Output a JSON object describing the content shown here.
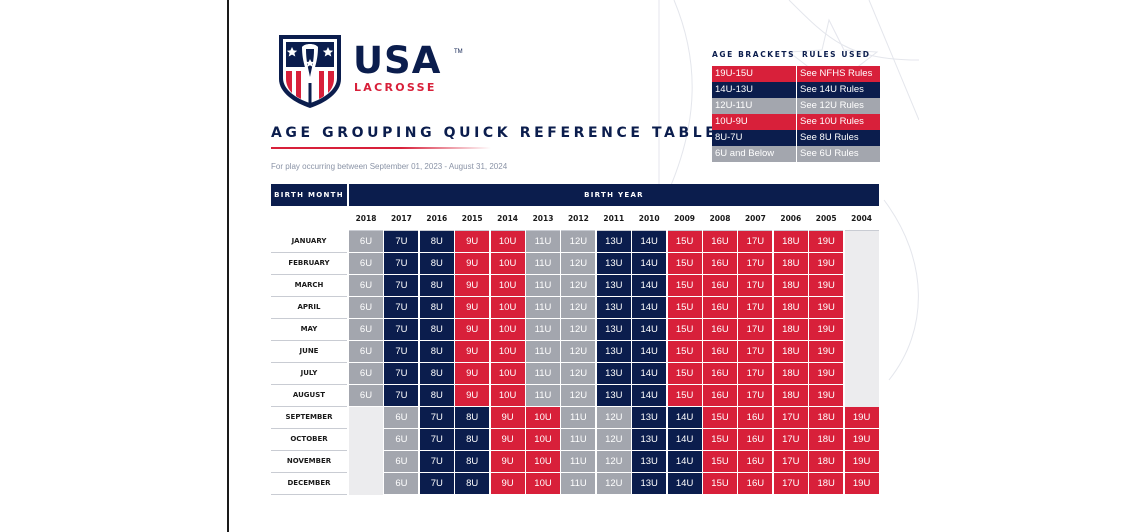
{
  "logo": {
    "wordmark": "USA",
    "tm": "TM",
    "sub": "LACROSSE"
  },
  "title": "AGE GROUPING QUICK REFERENCE TABLE",
  "subtitle": "For play occurring between September 01, 2023 - August 31, 2024",
  "legend": {
    "header_brackets": "AGE BRACKETS",
    "header_rules": "RULES USED",
    "rows": [
      {
        "bracket": "19U-15U",
        "rules": "See NFHS Rules",
        "color": "#d8203a"
      },
      {
        "bracket": "14U-13U",
        "rules": "See 14U Rules",
        "color": "#0b1d4d"
      },
      {
        "bracket": "12U-11U",
        "rules": "See 12U Rules",
        "color": "#a3a6ae"
      },
      {
        "bracket": "10U-9U",
        "rules": "See 10U Rules",
        "color": "#d8203a"
      },
      {
        "bracket": "8U-7U",
        "rules": "See 8U Rules",
        "color": "#0b1d4d"
      },
      {
        "bracket": "6U and Below",
        "rules": "See 6U Rules",
        "color": "#a3a6ae"
      }
    ]
  },
  "table": {
    "header_birth_month": "BIRTH MONTH",
    "header_birth_year": "BIRTH YEAR",
    "years": [
      "2018",
      "2017",
      "2016",
      "2015",
      "2014",
      "2013",
      "2012",
      "2011",
      "2010",
      "2009",
      "2008",
      "2007",
      "2006",
      "2005",
      "2004"
    ],
    "rows": [
      {
        "month": "JANUARY",
        "cells": [
          "6U",
          "7U",
          "8U",
          "9U",
          "10U",
          "11U",
          "12U",
          "13U",
          "14U",
          "15U",
          "16U",
          "17U",
          "18U",
          "19U",
          ""
        ]
      },
      {
        "month": "FEBRUARY",
        "cells": [
          "6U",
          "7U",
          "8U",
          "9U",
          "10U",
          "11U",
          "12U",
          "13U",
          "14U",
          "15U",
          "16U",
          "17U",
          "18U",
          "19U",
          ""
        ]
      },
      {
        "month": "MARCH",
        "cells": [
          "6U",
          "7U",
          "8U",
          "9U",
          "10U",
          "11U",
          "12U",
          "13U",
          "14U",
          "15U",
          "16U",
          "17U",
          "18U",
          "19U",
          ""
        ]
      },
      {
        "month": "APRIL",
        "cells": [
          "6U",
          "7U",
          "8U",
          "9U",
          "10U",
          "11U",
          "12U",
          "13U",
          "14U",
          "15U",
          "16U",
          "17U",
          "18U",
          "19U",
          ""
        ]
      },
      {
        "month": "MAY",
        "cells": [
          "6U",
          "7U",
          "8U",
          "9U",
          "10U",
          "11U",
          "12U",
          "13U",
          "14U",
          "15U",
          "16U",
          "17U",
          "18U",
          "19U",
          ""
        ]
      },
      {
        "month": "JUNE",
        "cells": [
          "6U",
          "7U",
          "8U",
          "9U",
          "10U",
          "11U",
          "12U",
          "13U",
          "14U",
          "15U",
          "16U",
          "17U",
          "18U",
          "19U",
          ""
        ]
      },
      {
        "month": "JULY",
        "cells": [
          "6U",
          "7U",
          "8U",
          "9U",
          "10U",
          "11U",
          "12U",
          "13U",
          "14U",
          "15U",
          "16U",
          "17U",
          "18U",
          "19U",
          ""
        ]
      },
      {
        "month": "AUGUST",
        "cells": [
          "6U",
          "7U",
          "8U",
          "9U",
          "10U",
          "11U",
          "12U",
          "13U",
          "14U",
          "15U",
          "16U",
          "17U",
          "18U",
          "19U",
          ""
        ]
      },
      {
        "month": "SEPTEMBER",
        "cells": [
          "",
          "6U",
          "7U",
          "8U",
          "9U",
          "10U",
          "11U",
          "12U",
          "13U",
          "14U",
          "15U",
          "16U",
          "17U",
          "18U",
          "19U"
        ]
      },
      {
        "month": "OCTOBER",
        "cells": [
          "",
          "6U",
          "7U",
          "8U",
          "9U",
          "10U",
          "11U",
          "12U",
          "13U",
          "14U",
          "15U",
          "16U",
          "17U",
          "18U",
          "19U"
        ]
      },
      {
        "month": "NOVEMBER",
        "cells": [
          "",
          "6U",
          "7U",
          "8U",
          "9U",
          "10U",
          "11U",
          "12U",
          "13U",
          "14U",
          "15U",
          "16U",
          "17U",
          "18U",
          "19U"
        ]
      },
      {
        "month": "DECEMBER",
        "cells": [
          "",
          "6U",
          "7U",
          "8U",
          "9U",
          "10U",
          "11U",
          "12U",
          "13U",
          "14U",
          "15U",
          "16U",
          "17U",
          "18U",
          "19U"
        ]
      }
    ]
  },
  "colors": {
    "navy": "#0b1d4d",
    "red": "#d8203a",
    "gray": "#a3a6ae",
    "empty": "#ececee",
    "age_colors": {
      "6U": "#a3a6ae",
      "7U": "#0b1d4d",
      "8U": "#0b1d4d",
      "9U": "#d8203a",
      "10U": "#d8203a",
      "11U": "#a3a6ae",
      "12U": "#a3a6ae",
      "13U": "#0b1d4d",
      "14U": "#0b1d4d",
      "15U": "#d8203a",
      "16U": "#d8203a",
      "17U": "#d8203a",
      "18U": "#d8203a",
      "19U": "#d8203a"
    }
  }
}
